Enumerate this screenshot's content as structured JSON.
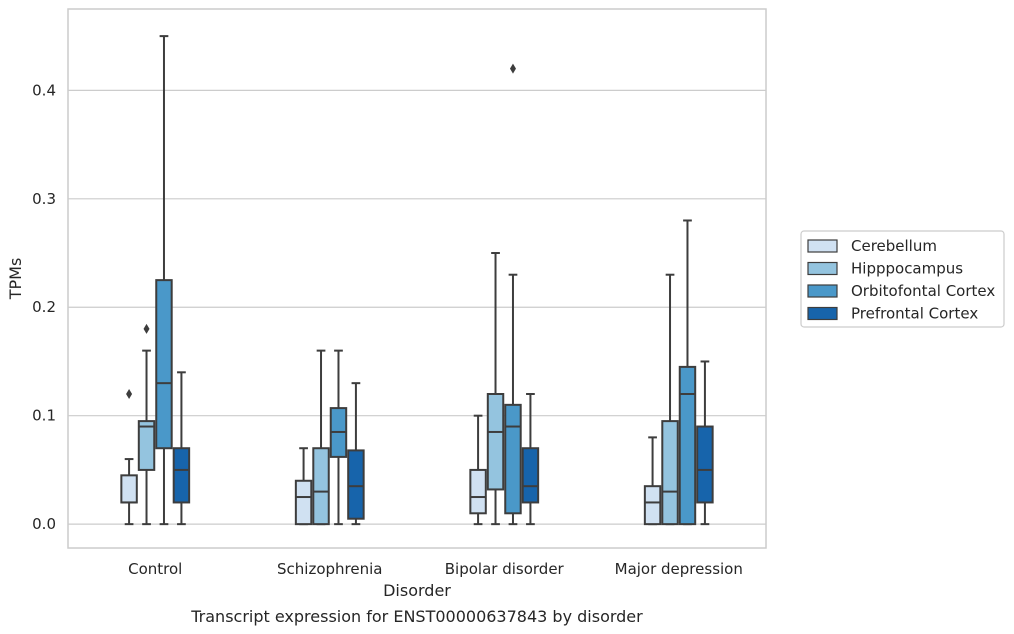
{
  "colors": {
    "Cerebellum": "#d0e1f2",
    "Hipppocampus": "#94c4df",
    "Orbitofontal Cortex": "#4a98c9",
    "Prefrontal Cortex": "#1764ab",
    "grid": "#cccccc",
    "frame": "#cccccc",
    "box_edge": "#3d3d3d"
  },
  "chart_data": {
    "type": "boxplot",
    "title": "",
    "caption": "Transcript expression for ENST00000637843 by disorder",
    "xlabel": "Disorder",
    "ylabel": "TPMs",
    "ylim": [
      -0.022,
      0.475
    ],
    "yticks": [
      0.0,
      0.1,
      0.2,
      0.3,
      0.4
    ],
    "ytick_labels": [
      "0.0",
      "0.1",
      "0.2",
      "0.3",
      "0.4"
    ],
    "grid": "horizontal",
    "legend_position": "right",
    "categories": [
      "Control",
      "Schizophrenia",
      "Bipolar disorder",
      "Major depression"
    ],
    "series": [
      {
        "name": "Cerebellum",
        "boxes": [
          {
            "whislo": 0.0,
            "q1": 0.02,
            "med": 0.02,
            "q3": 0.045,
            "whishi": 0.06,
            "fliers": [
              0.12
            ]
          },
          {
            "whislo": 0.0,
            "q1": 0.0,
            "med": 0.025,
            "q3": 0.04,
            "whishi": 0.07,
            "fliers": []
          },
          {
            "whislo": 0.0,
            "q1": 0.01,
            "med": 0.025,
            "q3": 0.05,
            "whishi": 0.1,
            "fliers": []
          },
          {
            "whislo": 0.0,
            "q1": 0.0,
            "med": 0.02,
            "q3": 0.035,
            "whishi": 0.08,
            "fliers": []
          }
        ]
      },
      {
        "name": "Hipppocampus",
        "boxes": [
          {
            "whislo": 0.0,
            "q1": 0.05,
            "med": 0.09,
            "q3": 0.095,
            "whishi": 0.16,
            "fliers": [
              0.18
            ]
          },
          {
            "whislo": 0.0,
            "q1": 0.0,
            "med": 0.03,
            "q3": 0.07,
            "whishi": 0.16,
            "fliers": []
          },
          {
            "whislo": 0.0,
            "q1": 0.032,
            "med": 0.085,
            "q3": 0.12,
            "whishi": 0.25,
            "fliers": []
          },
          {
            "whislo": 0.0,
            "q1": 0.0,
            "med": 0.03,
            "q3": 0.095,
            "whishi": 0.23,
            "fliers": []
          }
        ]
      },
      {
        "name": "Orbitofontal Cortex",
        "boxes": [
          {
            "whislo": 0.0,
            "q1": 0.07,
            "med": 0.13,
            "q3": 0.225,
            "whishi": 0.45,
            "fliers": []
          },
          {
            "whislo": 0.0,
            "q1": 0.062,
            "med": 0.085,
            "q3": 0.107,
            "whishi": 0.16,
            "fliers": []
          },
          {
            "whislo": 0.0,
            "q1": 0.01,
            "med": 0.09,
            "q3": 0.11,
            "whishi": 0.23,
            "fliers": [
              0.42
            ]
          },
          {
            "whislo": 0.0,
            "q1": 0.0,
            "med": 0.12,
            "q3": 0.145,
            "whishi": 0.28,
            "fliers": []
          }
        ]
      },
      {
        "name": "Prefrontal Cortex",
        "boxes": [
          {
            "whislo": 0.0,
            "q1": 0.02,
            "med": 0.05,
            "q3": 0.07,
            "whishi": 0.14,
            "fliers": []
          },
          {
            "whislo": 0.0,
            "q1": 0.005,
            "med": 0.035,
            "q3": 0.068,
            "whishi": 0.13,
            "fliers": []
          },
          {
            "whislo": 0.0,
            "q1": 0.02,
            "med": 0.035,
            "q3": 0.07,
            "whishi": 0.12,
            "fliers": []
          },
          {
            "whislo": 0.0,
            "q1": 0.02,
            "med": 0.05,
            "q3": 0.09,
            "whishi": 0.15,
            "fliers": []
          }
        ]
      }
    ]
  }
}
